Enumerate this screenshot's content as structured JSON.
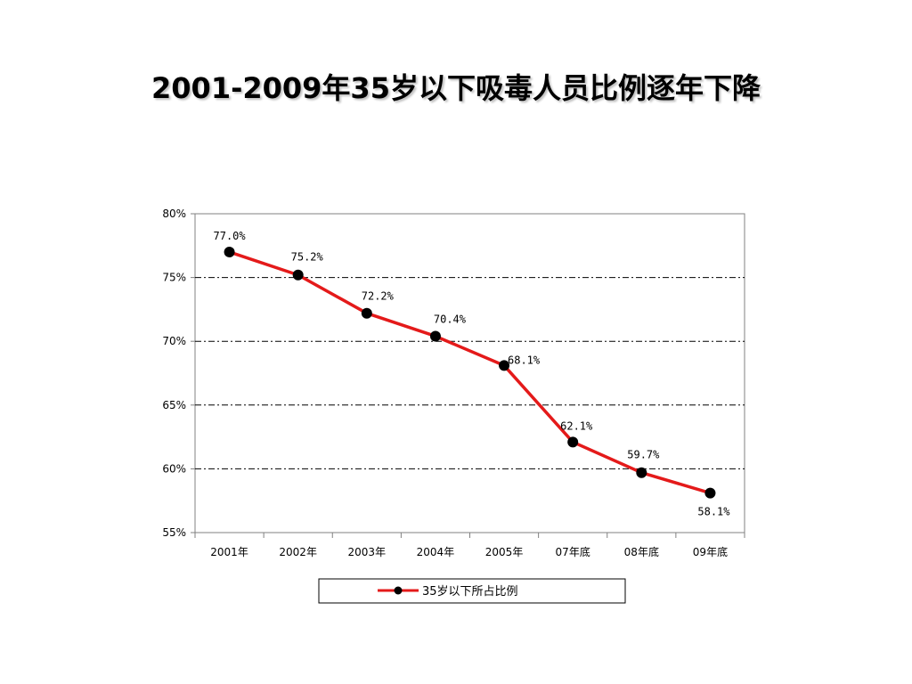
{
  "slide": {
    "title": "2001-2009年35岁以下吸毒人员比例逐年下降"
  },
  "chart_data": {
    "type": "line",
    "categories": [
      "2001年",
      "2002年",
      "2003年",
      "2004年",
      "2005年",
      "07年底",
      "08年底",
      "09年底"
    ],
    "series": [
      {
        "name": "35岁以下所占比例",
        "values": [
          77.0,
          75.2,
          72.2,
          70.4,
          68.1,
          62.1,
          59.7,
          58.1
        ],
        "labels": [
          "77.0%",
          "75.2%",
          "72.2%",
          "70.4%",
          "68.1%",
          "62.1%",
          "59.7%",
          "58.1%"
        ],
        "color": "#e41a1a",
        "marker_color": "#000000"
      }
    ],
    "ylim": [
      55,
      80
    ],
    "yticks": [
      55,
      60,
      65,
      70,
      75,
      80
    ],
    "ytick_labels": [
      "55%",
      "60%",
      "65%",
      "70%",
      "75%",
      "80%"
    ],
    "grid": "horizontal dash-dot",
    "legend_position": "bottom"
  }
}
